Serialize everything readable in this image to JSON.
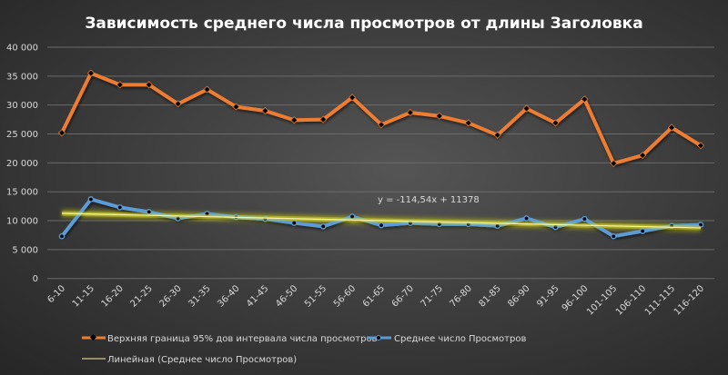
{
  "chart_data": {
    "type": "line",
    "title": "Зависимость  среднего  числа  просмотров  от длины Заголовка",
    "xlabel": "",
    "ylabel": "",
    "ylim": [
      0,
      40000
    ],
    "yticks": [
      "0",
      "5 000",
      "10 000",
      "15 000",
      "20 000",
      "25 000",
      "30 000",
      "35 000",
      "40 000"
    ],
    "grid": true,
    "legend_position": "bottom",
    "categories": [
      "6-10",
      "11-15",
      "16-20",
      "21-25",
      "26-30",
      "31-35",
      "36-40",
      "41-45",
      "46-50",
      "51-55",
      "56-60",
      "61-65",
      "66-70",
      "71-75",
      "76-80",
      "81-85",
      "86-90",
      "91-95",
      "96-100",
      "101-105",
      "106-110",
      "111-115",
      "116-120"
    ],
    "series": [
      {
        "name": "Верхняя граница 95% дов интервала числа просмотров",
        "color": "#ed7d31",
        "values": [
          25200,
          35500,
          33500,
          33500,
          30200,
          32700,
          29700,
          29000,
          27400,
          27500,
          31300,
          26600,
          28700,
          28100,
          26900,
          24800,
          29400,
          26900,
          31000,
          19900,
          21300,
          26100,
          23000
        ]
      },
      {
        "name": "Среднее число Просмотров",
        "color": "#5b9bd5",
        "values": [
          7300,
          13700,
          12300,
          11500,
          10400,
          11200,
          10600,
          10300,
          9600,
          9000,
          10700,
          9200,
          9600,
          9400,
          9400,
          9100,
          10400,
          8900,
          10300,
          7300,
          8200,
          9100,
          9300
        ]
      }
    ],
    "trendline": {
      "name": "Линейная (Среднее число Просмотров)",
      "type": "linear",
      "slope": -114.54,
      "intercept": 11378,
      "equation": "y = -114,54x + 11378",
      "color": "#fff2a8",
      "glow": "#d4d400"
    }
  }
}
